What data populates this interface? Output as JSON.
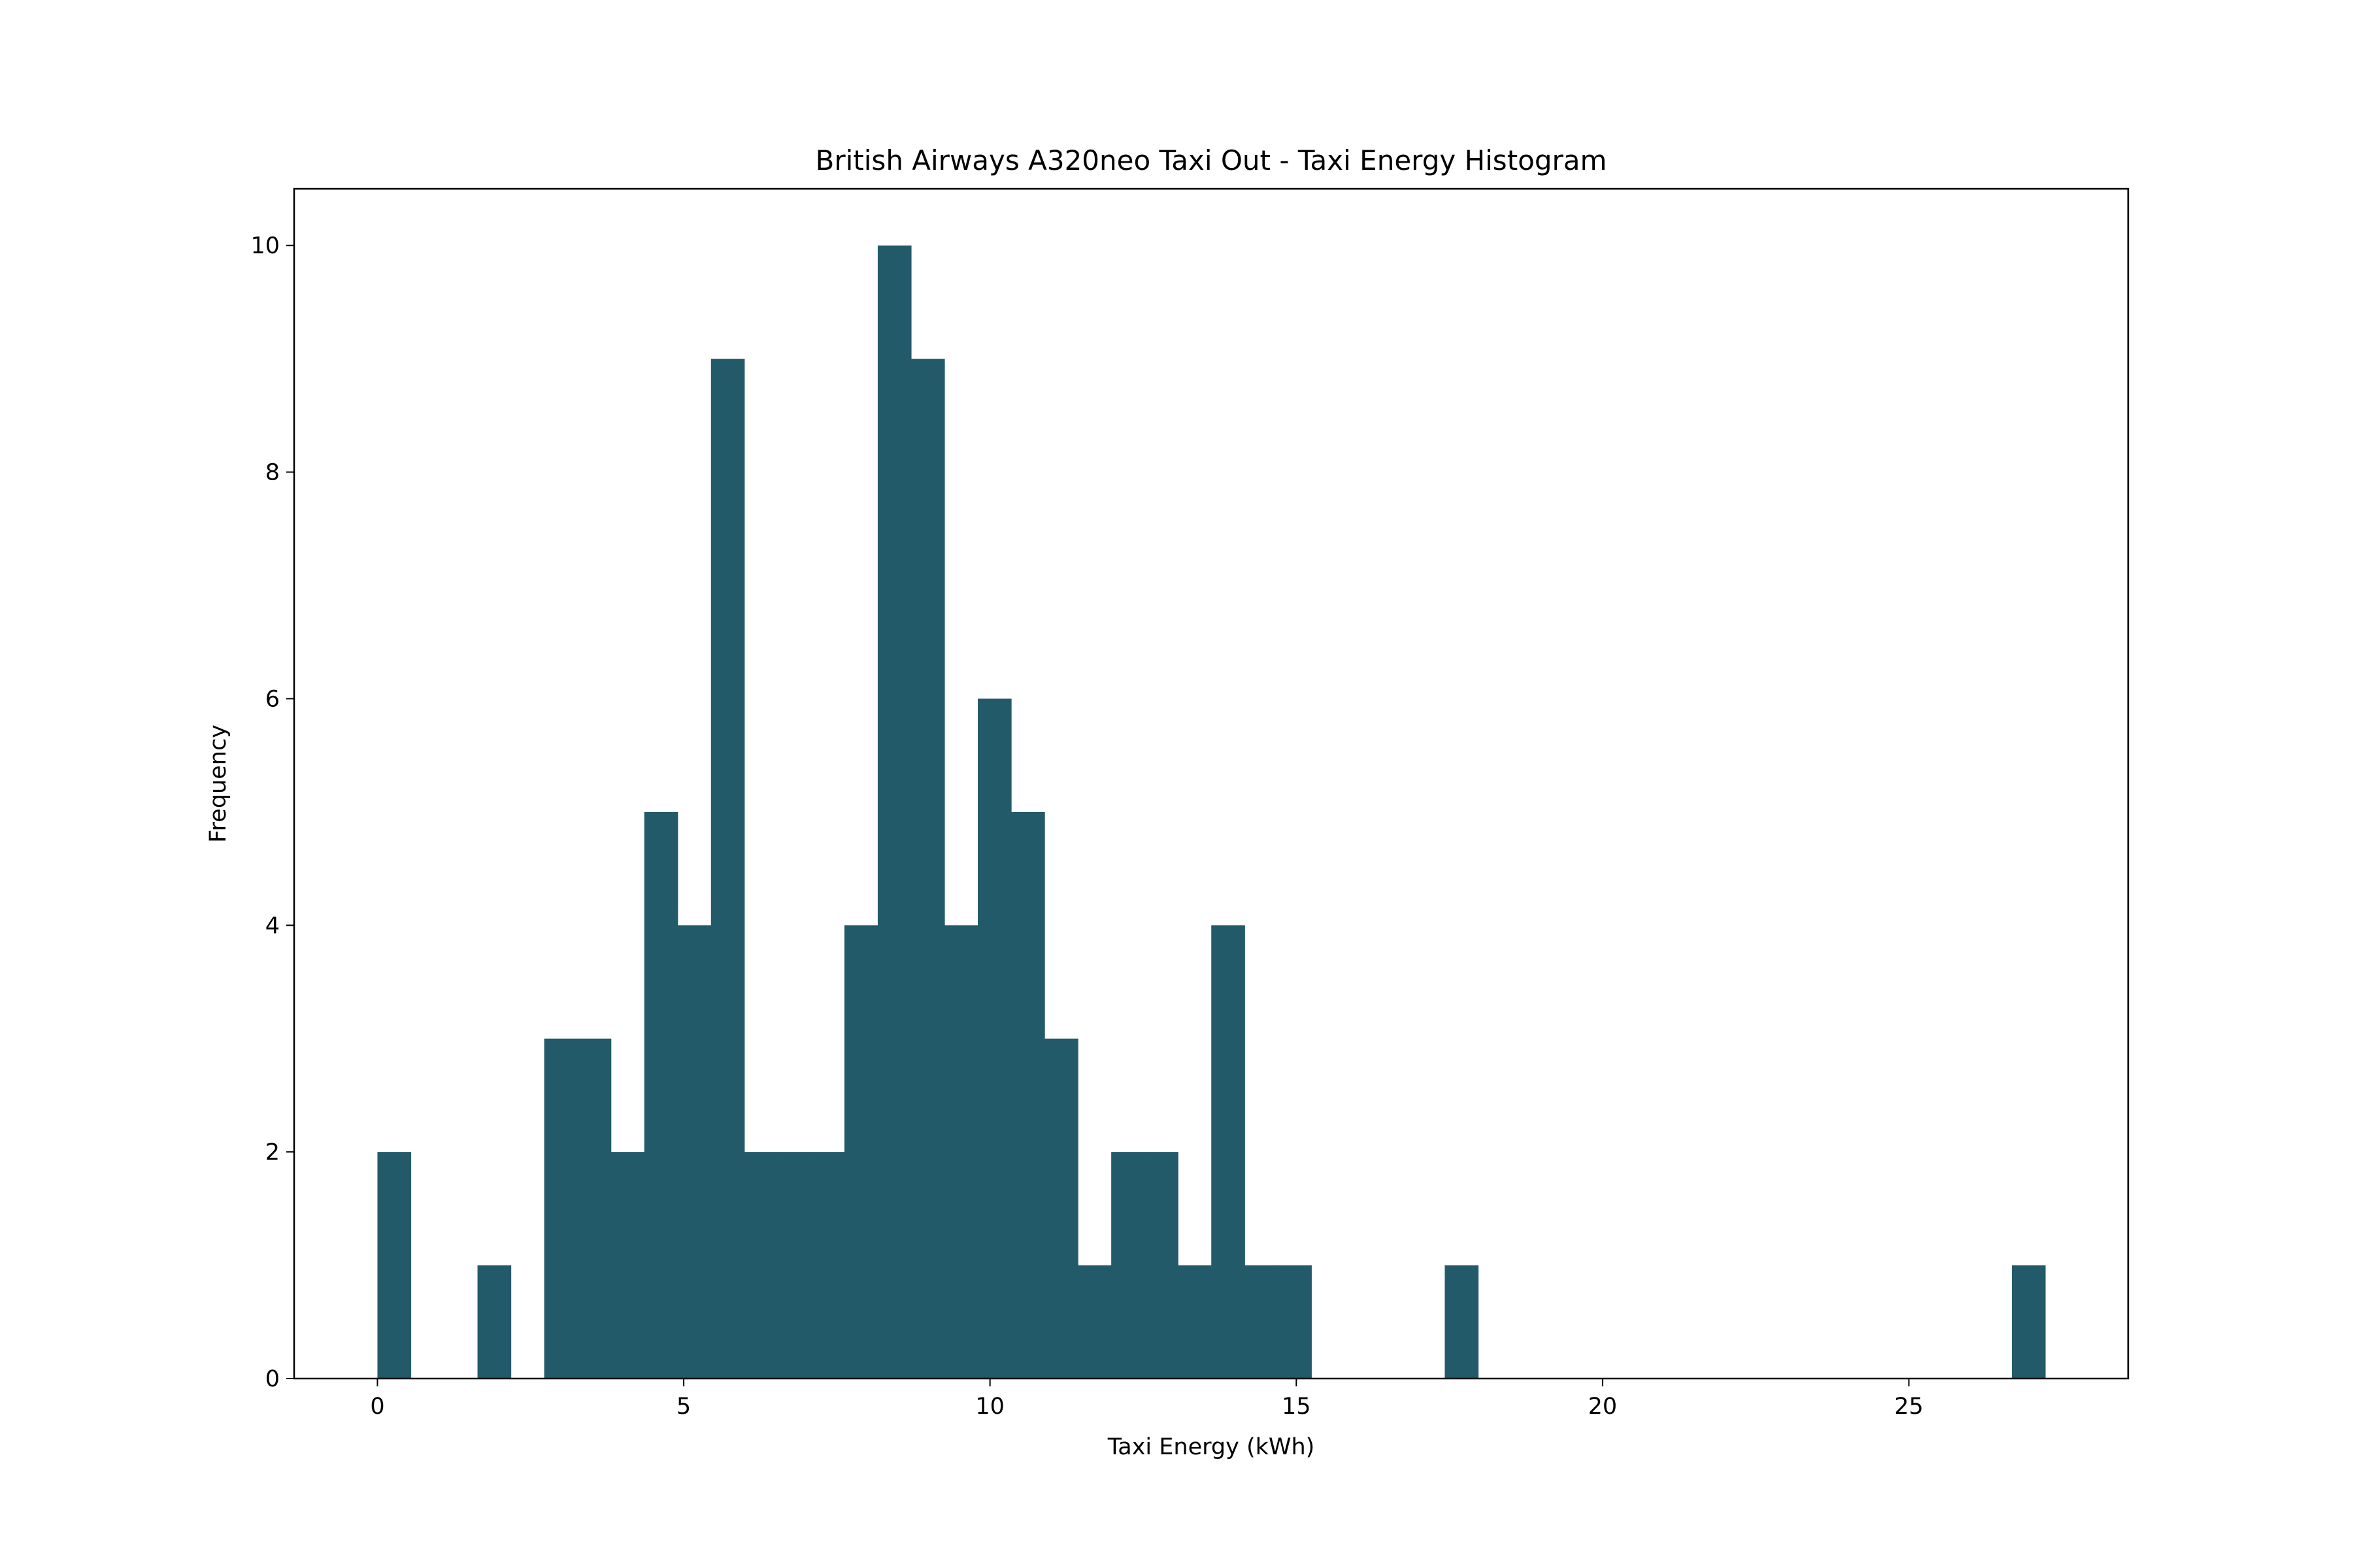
{
  "chart_data": {
    "type": "bar",
    "title": "British Airways A320neo Taxi Out - Taxi Energy Histogram",
    "xlabel": "Taxi Energy (kWh)",
    "ylabel": "Frequency",
    "xlim": [
      -1.36,
      28.58
    ],
    "ylim": [
      0,
      10.5
    ],
    "x_ticks": [
      0,
      5,
      10,
      15,
      20,
      25
    ],
    "y_ticks": [
      0,
      2,
      4,
      6,
      8,
      10
    ],
    "bin_start": 0.0,
    "bin_width": 0.5445,
    "counts": [
      2,
      0,
      0,
      1,
      0,
      3,
      3,
      2,
      5,
      4,
      9,
      2,
      2,
      2,
      4,
      10,
      9,
      4,
      6,
      5,
      3,
      1,
      2,
      2,
      1,
      4,
      1,
      1,
      0,
      0,
      0,
      0,
      1,
      0,
      0,
      0,
      0,
      0,
      0,
      0,
      0,
      0,
      0,
      0,
      0,
      0,
      0,
      0,
      0,
      1
    ],
    "bar_color": "#225a69",
    "grid": false
  }
}
